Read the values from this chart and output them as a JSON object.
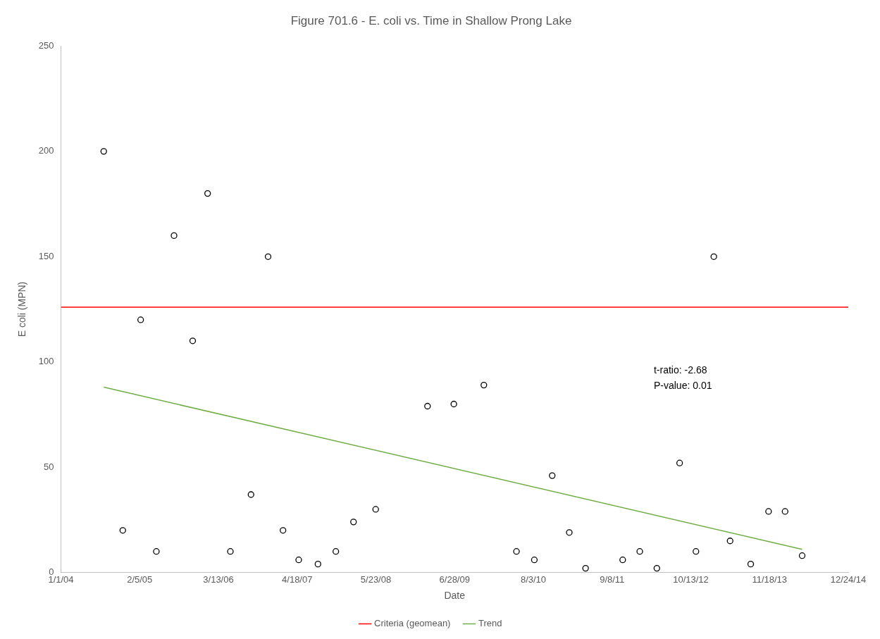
{
  "chart_data": {
    "type": "scatter",
    "title": "Figure 701.6 - E. coli vs. Time in Shallow Prong Lake",
    "xlabel": "Date",
    "ylabel": "E coli (MPN)",
    "x": [
      "2004-08-06",
      "2004-11-11",
      "2005-02-10",
      "2005-05-01",
      "2005-07-30",
      "2005-11-02",
      "2006-01-17",
      "2006-05-13",
      "2006-08-26",
      "2006-11-21",
      "2007-02-05",
      "2007-04-26",
      "2007-08-02",
      "2007-11-01",
      "2008-01-30",
      "2008-05-22",
      "2009-02-10",
      "2009-06-24",
      "2009-11-24",
      "2010-05-09",
      "2010-08-08",
      "2010-11-07",
      "2011-02-02",
      "2011-04-26",
      "2011-11-01",
      "2012-01-27",
      "2012-04-23",
      "2012-08-17",
      "2012-11-08",
      "2013-02-07",
      "2013-05-01",
      "2013-08-14",
      "2013-11-13",
      "2014-02-05",
      "2014-05-03"
    ],
    "series": [
      {
        "color": "#000000",
        "values": [
          200,
          20,
          120,
          10,
          160,
          110,
          180,
          10,
          37,
          150,
          20,
          6,
          4,
          10,
          24,
          30,
          79,
          80,
          89,
          10,
          6,
          46,
          19,
          2,
          6,
          10,
          2,
          52,
          10,
          150,
          15,
          4,
          29,
          29,
          8
        ]
      },
      {
        "type": "line",
        "name": "Trend",
        "color": "#70ad47",
        "marker": "none",
        "x": [
          "2004-08-06",
          "2014-05-03"
        ],
        "values": [
          88,
          11
        ]
      }
    ],
    "ref_lines": [
      {
        "axis": "y",
        "value": 126,
        "label": "Criteria (geomean)",
        "color": "#ff0000"
      }
    ],
    "annotations": [
      "t-ratio: -2.68",
      "P-value: 0.01"
    ],
    "xlim": [
      "2004-01-01",
      "2014-12-24"
    ],
    "xticks": [
      {
        "value": "2004-01-01",
        "label": "1/1/04"
      },
      {
        "value": "2005-02-05",
        "label": "2/5/05"
      },
      {
        "value": "2006-03-13",
        "label": "3/13/06"
      },
      {
        "value": "2007-04-18",
        "label": "4/18/07"
      },
      {
        "value": "2008-05-23",
        "label": "5/23/08"
      },
      {
        "value": "2009-06-28",
        "label": "6/28/09"
      },
      {
        "value": "2010-08-03",
        "label": "8/3/10"
      },
      {
        "value": "2011-09-08",
        "label": "9/8/11"
      },
      {
        "value": "2012-10-13",
        "label": "10/13/12"
      },
      {
        "value": "2013-11-18",
        "label": "11/18/13"
      },
      {
        "value": "2014-12-24",
        "label": "12/24/14"
      }
    ],
    "ylim": [
      0,
      250
    ],
    "yticks": [
      0,
      50,
      100,
      150,
      200,
      250
    ],
    "grid": false,
    "legend": "bottom",
    "marker": "circle"
  }
}
